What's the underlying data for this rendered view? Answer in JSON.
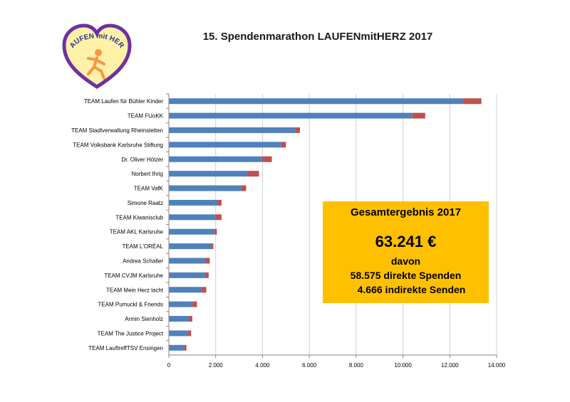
{
  "title": "15. Spendenmarathon LAUFENmitHERZ 2017",
  "logo": {
    "text": "LAUFEN mit HERZ",
    "colors": {
      "heart": "#7030a0",
      "fill": "#fff2a8",
      "runner": "#f79646",
      "text": "#2e2e8f"
    }
  },
  "colors": {
    "direct": "#4f81bd",
    "indirect": "#c0504d",
    "summary_bg": "#ffc000",
    "grid": "#d0d0d0",
    "axis": "#868686"
  },
  "summary": {
    "heading": "Gesamtergebnis 2017",
    "total": "63.241 €",
    "davon": "davon",
    "direct": "58.575 direkte Spenden",
    "indirect": "4.666 indirekte Senden"
  },
  "chart_data": {
    "type": "bar",
    "orientation": "horizontal",
    "stacked": true,
    "xlim": [
      0,
      14000
    ],
    "xticks": [
      0,
      2000,
      4000,
      6000,
      8000,
      10000,
      12000,
      14000
    ],
    "xtick_labels": [
      "0",
      "2.000",
      "4.000",
      "6.000",
      "8.000",
      "10.000",
      "12.000",
      "14.000"
    ],
    "grid": "vertical",
    "categories": [
      "TEAM Laufen für Bühler Kinder",
      "TEAM FUoKK",
      "TEAM Stadtverwaltung Rheinstetten",
      "TEAM Volksbank Karlsruhe Stiftung",
      "Dr. Oliver Hölzer",
      "Norbert Ihrig",
      "TEAM VafK",
      "Simone Raatz",
      "TEAM Kiwanisclub",
      "TEAM AKL Karlsruhe",
      "TEAM  L'ORÉAL",
      "Andrea Schaller",
      "TEAM CVJM Karlsruhe",
      "TEAM Mein Herz lacht",
      "TEAM Pumuckl & Friends",
      "Armin Sienholz",
      "TEAM The Justice Project",
      "TEAM LauftreffTSV Ensingen"
    ],
    "series": [
      {
        "values": [
          12550,
          10400,
          5400,
          4800,
          4000,
          3350,
          3100,
          2100,
          2000,
          1950,
          1800,
          1550,
          1550,
          1400,
          1000,
          850,
          800,
          650
        ]
      },
      {
        "values": [
          800,
          550,
          200,
          200,
          400,
          500,
          200,
          150,
          250,
          100,
          100,
          200,
          150,
          200,
          200,
          150,
          150,
          100
        ]
      }
    ]
  }
}
